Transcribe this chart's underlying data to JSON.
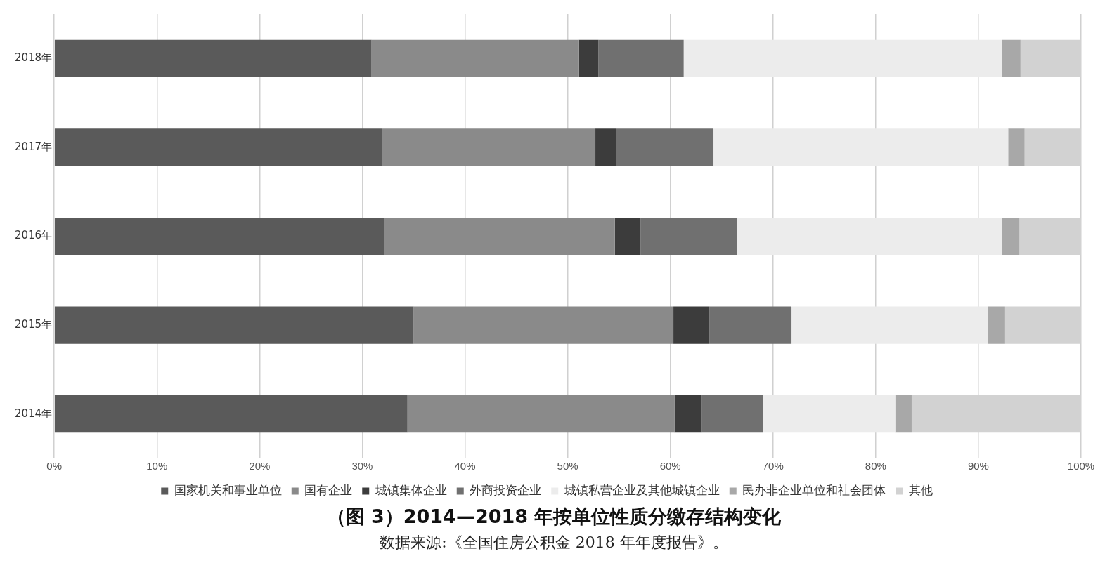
{
  "chart_data": {
    "type": "bar",
    "orientation": "horizontal",
    "stacked": true,
    "title": "（图 3）2014—2018 年按单位性质分缴存结构变化",
    "annotations": [
      "数据来源:《全国住房公积金 2018 年年度报告》。"
    ],
    "categories": [
      "2018年",
      "2017年",
      "2016年",
      "2015年",
      "2014年"
    ],
    "series": [
      {
        "name": "国家机关和事业单位",
        "color": "#5a5a5a",
        "values": [
          30.9,
          31.9,
          32.1,
          35.0,
          34.4
        ]
      },
      {
        "name": "国有企业",
        "color": "#8a8a8a",
        "values": [
          20.2,
          20.8,
          22.5,
          25.3,
          26.0
        ]
      },
      {
        "name": "城镇集体企业",
        "color": "#3c3c3c",
        "values": [
          1.9,
          2.0,
          2.5,
          3.5,
          2.6
        ]
      },
      {
        "name": "外商投资企业",
        "color": "#707070",
        "values": [
          8.3,
          9.5,
          9.4,
          8.0,
          6.0
        ]
      },
      {
        "name": "城镇私营企业及其他城镇企业",
        "color": "#ececec",
        "values": [
          31.0,
          28.7,
          25.8,
          19.1,
          12.9
        ]
      },
      {
        "name": "民办非企业单位和社会团体",
        "color": "#a8a8a8",
        "values": [
          1.8,
          1.6,
          1.7,
          1.7,
          1.6
        ]
      },
      {
        "name": "其他",
        "color": "#d2d2d2",
        "values": [
          5.9,
          5.5,
          6.0,
          7.4,
          16.5
        ]
      }
    ],
    "xlim": [
      0,
      100
    ],
    "xticks": [
      {
        "value": 0,
        "label": "0%"
      },
      {
        "value": 10,
        "label": "10%"
      },
      {
        "value": 20,
        "label": "20%"
      },
      {
        "value": 30,
        "label": "30%"
      },
      {
        "value": 40,
        "label": "40%"
      },
      {
        "value": 50,
        "label": "50%"
      },
      {
        "value": 60,
        "label": "60%"
      },
      {
        "value": 70,
        "label": "70%"
      },
      {
        "value": 80,
        "label": "80%"
      },
      {
        "value": 90,
        "label": "90%"
      },
      {
        "value": 100,
        "label": "100%"
      }
    ],
    "grid": "x",
    "legend": "bottom"
  }
}
